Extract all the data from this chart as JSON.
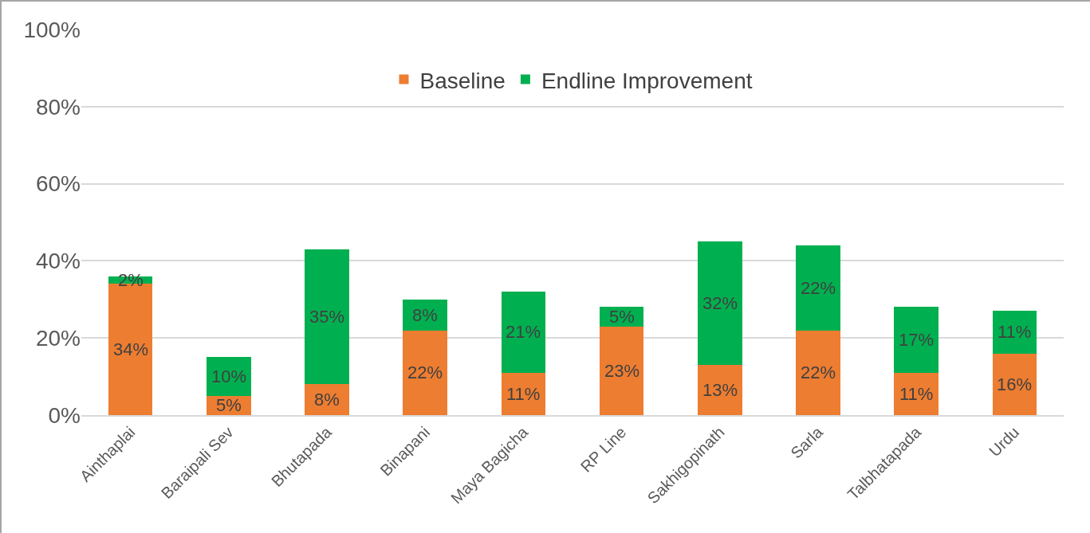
{
  "chart_data": {
    "type": "bar",
    "stacked": true,
    "categories": [
      "Ainthaplai",
      "Baraipali Sev",
      "Bhutapada",
      "Binapani",
      "Maya Bagicha",
      "RP Line",
      "Sakhigopinath",
      "Sarla",
      "Talbhatapada",
      "Urdu"
    ],
    "series": [
      {
        "name": "Baseline",
        "color": "#ed7d31",
        "values": [
          34,
          5,
          8,
          22,
          11,
          23,
          13,
          22,
          11,
          16
        ],
        "value_labels": [
          "34%",
          "5%",
          "8%",
          "22%",
          "11%",
          "23%",
          "13%",
          "22%",
          "11%",
          "16%"
        ]
      },
      {
        "name": "Endline Improvement",
        "color": "#00b050",
        "values": [
          2,
          10,
          35,
          8,
          21,
          5,
          32,
          22,
          17,
          11
        ],
        "value_labels": [
          "2%",
          "10%",
          "35%",
          "8%",
          "21%",
          "5%",
          "32%",
          "22%",
          "17%",
          "11%"
        ]
      }
    ],
    "ylim": [
      0,
      100
    ],
    "yticks": [
      {
        "value": 0,
        "label": "0%"
      },
      {
        "value": 20,
        "label": "20%"
      },
      {
        "value": 40,
        "label": "40%"
      },
      {
        "value": 60,
        "label": "60%"
      },
      {
        "value": 80,
        "label": "80%"
      },
      {
        "value": 100,
        "label": "100%"
      }
    ],
    "grid": "y",
    "legend": "top"
  }
}
